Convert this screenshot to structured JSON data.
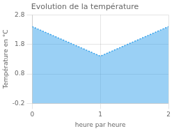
{
  "chart_data": {
    "type": "area",
    "title": "Evolution de la température",
    "xlabel": "heure par heure",
    "ylabel": "Température en °C",
    "x": [
      0,
      1,
      2
    ],
    "values": [
      2.4,
      1.4,
      2.4
    ],
    "line_style": "dotted",
    "xlim": [
      0,
      2
    ],
    "ylim": [
      -0.2,
      2.8
    ],
    "xticks": [
      0,
      1,
      2
    ],
    "yticks": [
      -0.2,
      0.8,
      1.8,
      2.8
    ],
    "grid": true
  }
}
